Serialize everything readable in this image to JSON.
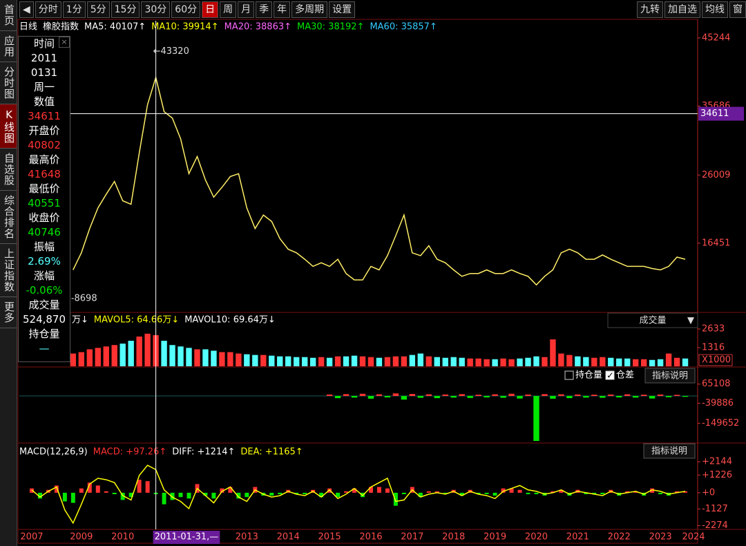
{
  "toolbar": {
    "periods": [
      "分时",
      "1分",
      "5分",
      "15分",
      "30分",
      "60分",
      "日",
      "周",
      "月",
      "季",
      "年",
      "多周期",
      "设置"
    ],
    "active": 6,
    "right": [
      "九转",
      "加自选",
      "均线",
      "窗"
    ]
  },
  "sidebar": [
    "首页",
    "应用",
    "分时图",
    "K线图",
    "自选股",
    "综合排名",
    "上证指数",
    "更多"
  ],
  "sidebar_active": 3,
  "info_bar": {
    "period": "日线",
    "name": "橡胶指数",
    "ma": [
      {
        "text": "MA5: 40107↑",
        "color": "#ffffff"
      },
      {
        "text": "MA10: 39914↑",
        "color": "#ffff00"
      },
      {
        "text": "MA20: 38863↑",
        "color": "#ff66ff"
      },
      {
        "text": "MA30: 38192↑",
        "color": "#00e600"
      },
      {
        "text": "MA60: 35857↑",
        "color": "#33ccff"
      }
    ]
  },
  "info_panel": [
    {
      "text": "时间",
      "color": "#ffffff"
    },
    {
      "text": "2011",
      "color": "#ffffff"
    },
    {
      "text": "0131",
      "color": "#ffffff"
    },
    {
      "text": "周一",
      "color": "#ffffff"
    },
    {
      "text": "数值",
      "color": "#ffffff"
    },
    {
      "text": "34611",
      "color": "#ff3232"
    },
    {
      "text": "开盘价",
      "color": "#ffffff"
    },
    {
      "text": "40802",
      "color": "#ff3232"
    },
    {
      "text": "最高价",
      "color": "#ffffff"
    },
    {
      "text": "41648",
      "color": "#ff3232"
    },
    {
      "text": "最低价",
      "color": "#ffffff"
    },
    {
      "text": "40551",
      "color": "#00e600"
    },
    {
      "text": "收盘价",
      "color": "#ffffff"
    },
    {
      "text": "40746",
      "color": "#00e600"
    },
    {
      "text": "振幅",
      "color": "#ffffff"
    },
    {
      "text": "2.69%",
      "color": "#54ffff"
    },
    {
      "text": "涨幅",
      "color": "#ffffff"
    },
    {
      "text": "-0.06%",
      "color": "#00e600"
    },
    {
      "text": "成交量",
      "color": "#ffffff"
    },
    {
      "text": "524,870",
      "color": "#ffffff"
    },
    {
      "text": "持仓量",
      "color": "#ffffff"
    },
    {
      "text": "—",
      "color": "#54ffff"
    }
  ],
  "volume_header": [
    {
      "text": "万↓",
      "color": "#ffffff"
    },
    {
      "text": "MAVOL5: 64.66万↓",
      "color": "#ffff00"
    },
    {
      "text": "MAVOL10: 69.64万↓",
      "color": "#ffffff"
    }
  ],
  "volume_selector": "成交量",
  "volume_unit": "X1000",
  "oi_header": {
    "options": [
      {
        "text": "持仓量",
        "checked": false
      },
      {
        "text": "仓差",
        "checked": true
      }
    ],
    "button": "指标说明"
  },
  "macd_header": {
    "items": [
      {
        "text": "MACD(12,26,9)",
        "color": "#ffffff"
      },
      {
        "text": "MACD: +97.26↑",
        "color": "#ff3232"
      },
      {
        "text": "DIFF: +1214↑",
        "color": "#ffffff"
      },
      {
        "text": "DEA: +1165↑",
        "color": "#ffff00"
      }
    ],
    "button": "指标说明"
  },
  "chart_data": [
    {
      "type": "line",
      "color": "#ffee66",
      "ylim": [
        6934,
        47657
      ],
      "yticks": [
        45244,
        35686,
        26009,
        16451
      ],
      "high": {
        "value": 43320,
        "label": "←43320"
      },
      "low": {
        "value": 8698,
        "label": "-8698"
      },
      "crosshair": {
        "value": 34611
      },
      "values": [
        null,
        null,
        null,
        null,
        null,
        null,
        12700,
        15100,
        18500,
        21400,
        23300,
        25100,
        22400,
        21900,
        29100,
        35900,
        39700,
        34900,
        34000,
        31100,
        26200,
        28600,
        25300,
        22900,
        24300,
        25800,
        26200,
        21400,
        18500,
        20400,
        19500,
        17100,
        15600,
        15100,
        14200,
        13200,
        13700,
        13200,
        14200,
        12200,
        11300,
        11300,
        13200,
        12700,
        14700,
        17500,
        20400,
        15100,
        14700,
        16100,
        14200,
        13700,
        12700,
        11800,
        12200,
        12200,
        12700,
        12200,
        12200,
        12700,
        12200,
        11800,
        10600,
        11800,
        12700,
        15100,
        15600,
        15100,
        14200,
        14200,
        14800,
        14200,
        13700,
        13200,
        13200,
        13200,
        12900,
        12700,
        13200,
        14500,
        14200,
        null
      ]
    },
    {
      "type": "bar",
      "up_color": "#ff3232",
      "down_color": "#54ffff",
      "ylim": [
        0,
        2828
      ],
      "yticks": [
        1316,
        2633
      ],
      "values": [
        null,
        null,
        null,
        null,
        null,
        null,
        900,
        1000,
        1200,
        1300,
        1400,
        1500,
        1600,
        1800,
        2100,
        2300,
        2200,
        1800,
        1500,
        1400,
        1300,
        1200,
        1200,
        1100,
        1000,
        1000,
        900,
        850,
        800,
        800,
        750,
        700,
        700,
        650,
        650,
        600,
        650,
        600,
        700,
        700,
        750,
        700,
        650,
        600,
        650,
        700,
        700,
        800,
        900,
        700,
        650,
        600,
        650,
        600,
        550,
        550,
        500,
        500,
        550,
        500,
        550,
        600,
        700,
        650,
        1900,
        900,
        800,
        700,
        650,
        600,
        650,
        600,
        550,
        550,
        500,
        500,
        450,
        500,
        900,
        600,
        550,
        null
      ]
    },
    {
      "type": "bar",
      "up_color": "#ff3232",
      "down_color": "#00e600",
      "ylim": [
        -254600,
        151400
      ],
      "yticks": [
        65108,
        -39886,
        -149652
      ],
      "values": [
        null,
        null,
        null,
        null,
        null,
        null,
        null,
        null,
        null,
        null,
        null,
        null,
        null,
        null,
        null,
        null,
        null,
        null,
        null,
        null,
        null,
        null,
        null,
        null,
        null,
        null,
        null,
        null,
        null,
        null,
        null,
        null,
        null,
        null,
        null,
        null,
        null,
        8000,
        -12000,
        10000,
        -9000,
        12000,
        -15000,
        9000,
        -8000,
        14000,
        -20000,
        11000,
        -10000,
        9000,
        -12000,
        8000,
        -9000,
        10000,
        -11000,
        7000,
        -8000,
        9000,
        -10000,
        12000,
        -14000,
        8000,
        -247000,
        10000,
        -15000,
        9000,
        -12000,
        8000,
        -9000,
        7000,
        -10000,
        8000,
        -8000,
        9000,
        -9000,
        7000,
        -14000,
        8000,
        -7000,
        6000,
        -5000,
        null
      ]
    },
    {
      "type": "macd",
      "up_color": "#ff3232",
      "down_color": "#00e600",
      "line_color": "#ffff00",
      "ylim": [
        -2490,
        3250
      ],
      "yticks": [
        {
          "value": 2144,
          "label": "+2144"
        },
        {
          "value": 1226,
          "label": "+1226"
        },
        {
          "value": 0,
          "label": "+0"
        },
        {
          "value": -1127,
          "label": "-1127"
        },
        {
          "value": -2274,
          "label": "-2274"
        }
      ],
      "categories": [
        null,
        "2007",
        null,
        null,
        null,
        null,
        null,
        "2009",
        null,
        null,
        null,
        null,
        "2010",
        null,
        null,
        null,
        "2011-01-31,—",
        null,
        null,
        null,
        null,
        null,
        null,
        null,
        null,
        null,
        null,
        "2013",
        null,
        null,
        null,
        null,
        "2014",
        null,
        null,
        null,
        null,
        "2015",
        null,
        null,
        null,
        null,
        "2016",
        null,
        null,
        null,
        null,
        "2017",
        null,
        null,
        null,
        null,
        "2018",
        null,
        null,
        null,
        null,
        "2019",
        null,
        null,
        null,
        null,
        "2020",
        null,
        null,
        null,
        null,
        "2021",
        null,
        null,
        null,
        null,
        "2022",
        null,
        null,
        null,
        null,
        "2023",
        null,
        null,
        null,
        "2024"
      ],
      "crosshair_category": "2011-01-31,—",
      "macd": [
        null,
        300,
        -400,
        200,
        500,
        -600,
        -700,
        300,
        700,
        500,
        100,
        -100,
        -500,
        -300,
        900,
        800,
        -100,
        -800,
        -500,
        -300,
        -400,
        600,
        -200,
        -400,
        300,
        400,
        -400,
        -300,
        400,
        -200,
        -200,
        -100,
        200,
        -100,
        -100,
        200,
        -300,
        300,
        -300,
        100,
        300,
        -300,
        400,
        400,
        300,
        -900,
        -100,
        400,
        -300,
        100,
        100,
        -100,
        200,
        -200,
        200,
        -100,
        -100,
        -200,
        300,
        300,
        200,
        -100,
        -100,
        -200,
        100,
        200,
        -200,
        200,
        -100,
        -100,
        -100,
        200,
        -200,
        100,
        100,
        -200,
        300,
        -100,
        -200,
        100,
        100,
        null
      ],
      "diff": [
        null,
        200,
        -300,
        100,
        400,
        -1200,
        -2100,
        -800,
        600,
        1000,
        900,
        700,
        -200,
        -500,
        1200,
        1900,
        1600,
        200,
        -300,
        -600,
        -1100,
        300,
        -200,
        -700,
        100,
        400,
        -300,
        -600,
        200,
        -100,
        -300,
        -200,
        100,
        -100,
        -200,
        100,
        -300,
        200,
        -400,
        -100,
        300,
        -200,
        400,
        700,
        1000,
        -600,
        -500,
        200,
        -300,
        -100,
        0,
        -100,
        100,
        -200,
        100,
        -100,
        -200,
        -400,
        100,
        300,
        500,
        200,
        100,
        -100,
        0,
        200,
        -100,
        100,
        0,
        -100,
        -200,
        100,
        -100,
        0,
        100,
        -100,
        200,
        100,
        -100,
        0,
        100,
        null
      ]
    }
  ]
}
